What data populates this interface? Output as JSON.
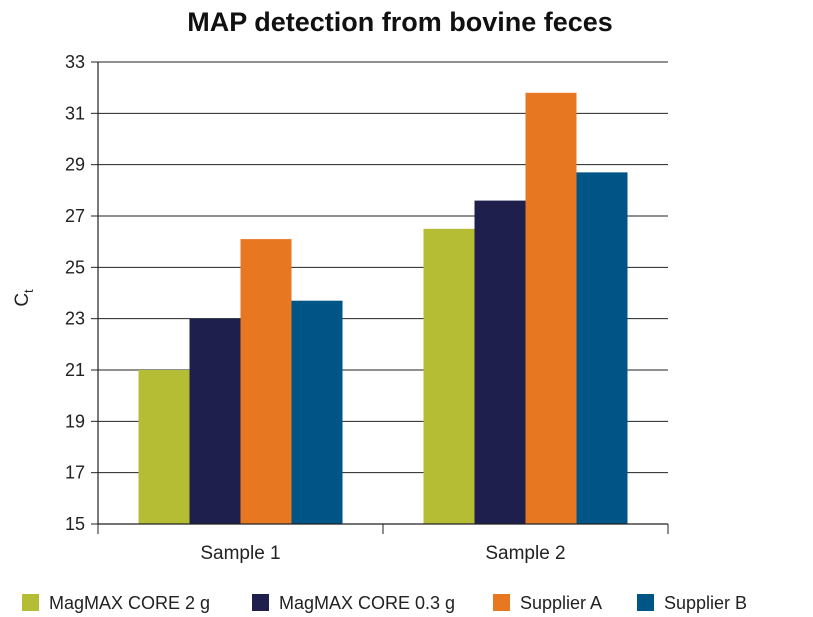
{
  "chart_data": {
    "type": "bar",
    "title": "MAP detection from bovine feces",
    "ylabel": "C",
    "ylabel_subscript": "t",
    "xlabel": "",
    "categories": [
      "Sample 1",
      "Sample 2"
    ],
    "ylim": [
      15,
      33
    ],
    "yticks": [
      15,
      17,
      19,
      21,
      23,
      25,
      27,
      29,
      31,
      33
    ],
    "grid": true,
    "legend_position": "bottom",
    "series": [
      {
        "name": "MagMAX CORE 2 g",
        "color": "#b5bd35",
        "values": [
          21.0,
          26.5
        ]
      },
      {
        "name": "MagMAX CORE 0.3 g",
        "color": "#1f1f4d",
        "values": [
          23.0,
          27.6
        ]
      },
      {
        "name": "Supplier A",
        "color": "#e87722",
        "values": [
          26.1,
          31.8
        ]
      },
      {
        "name": "Supplier B",
        "color": "#005587",
        "values": [
          23.7,
          28.7
        ]
      }
    ]
  }
}
